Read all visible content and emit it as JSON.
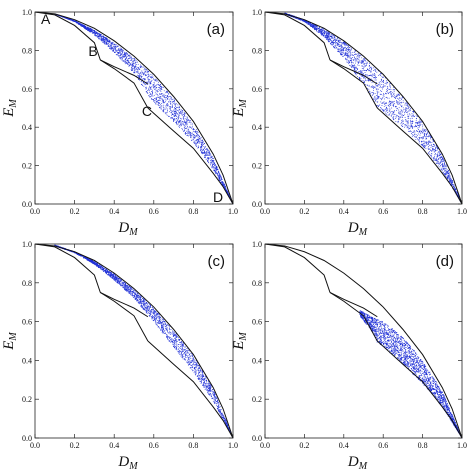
{
  "colors": {
    "scatter": "#1f2fd6",
    "boundary": "#111111",
    "frame": "#222222",
    "background": "#ffffff"
  },
  "axes": {
    "xlabel_main": "D",
    "xlabel_sub": "M",
    "ylabel_main": "E",
    "ylabel_sub": "M",
    "xlim": [
      0,
      1
    ],
    "ylim": [
      0,
      1
    ],
    "x_ticks": [
      "0.0",
      "0.2",
      "0.4",
      "0.6",
      "0.8",
      "1.0"
    ],
    "y_ticks": [
      "0.0",
      "0.2",
      "0.4",
      "0.6",
      "0.8",
      "1.0"
    ],
    "grid": false
  },
  "chart_data": [
    {
      "type": "scatter",
      "panel": "(a)",
      "title": "",
      "xlabel": "D_M",
      "ylabel": "E_M",
      "xlim": [
        0,
        1
      ],
      "ylim": [
        0,
        1
      ],
      "annotations": [
        {
          "text": "A",
          "x": 0.0,
          "y": 1.0
        },
        {
          "text": "B",
          "x": 0.33,
          "y": 0.74
        },
        {
          "text": "C",
          "x": 0.57,
          "y": 0.5
        },
        {
          "text": "D",
          "x": 1.0,
          "y": 0.0
        }
      ],
      "boundaries": [
        {
          "x": [
            0.0,
            0.1,
            0.2,
            0.3,
            0.4,
            0.5,
            0.6,
            0.7,
            0.8,
            0.9,
            0.95,
            1.0
          ],
          "y": [
            1.0,
            0.99,
            0.96,
            0.915,
            0.85,
            0.77,
            0.675,
            0.56,
            0.43,
            0.26,
            0.15,
            0.0
          ]
        },
        {
          "x": [
            0.0,
            0.1,
            0.2,
            0.3,
            0.33
          ],
          "y": [
            1.0,
            0.985,
            0.93,
            0.84,
            0.75
          ]
        },
        {
          "x": [
            0.33,
            0.4,
            0.5,
            0.57
          ],
          "y": [
            0.75,
            0.705,
            0.63,
            0.5
          ]
        },
        {
          "x": [
            0.57,
            0.7,
            0.8,
            0.9,
            0.95,
            1.0
          ],
          "y": [
            0.5,
            0.38,
            0.29,
            0.16,
            0.09,
            0.0
          ]
        },
        {
          "x": [
            0.33,
            0.4,
            0.5,
            0.57
          ],
          "y": [
            0.75,
            0.715,
            0.67,
            0.625
          ]
        }
      ],
      "region": {
        "upper": {
          "x": [
            0.1,
            0.2,
            0.3,
            0.4,
            0.5,
            0.6,
            0.7,
            0.8,
            0.9,
            1.0
          ],
          "y": [
            0.99,
            0.955,
            0.905,
            0.84,
            0.76,
            0.665,
            0.55,
            0.415,
            0.24,
            0.0
          ]
        },
        "lower": {
          "x": [
            0.1,
            0.2,
            0.3,
            0.4,
            0.5,
            0.57,
            0.6,
            0.7,
            0.8,
            0.9,
            1.0
          ],
          "y": [
            0.99,
            0.95,
            0.88,
            0.79,
            0.68,
            0.57,
            0.53,
            0.43,
            0.32,
            0.18,
            0.0
          ]
        }
      }
    },
    {
      "type": "scatter",
      "panel": "(b)",
      "title": "",
      "xlabel": "D_M",
      "ylabel": "E_M",
      "xlim": [
        0,
        1
      ],
      "ylim": [
        0,
        1
      ],
      "annotations": [],
      "boundaries": [
        {
          "x": [
            0.0,
            0.1,
            0.2,
            0.3,
            0.4,
            0.5,
            0.6,
            0.7,
            0.8,
            0.9,
            0.95,
            1.0
          ],
          "y": [
            1.0,
            0.99,
            0.96,
            0.915,
            0.85,
            0.77,
            0.675,
            0.56,
            0.43,
            0.26,
            0.15,
            0.0
          ]
        },
        {
          "x": [
            0.0,
            0.1,
            0.2,
            0.3,
            0.33
          ],
          "y": [
            1.0,
            0.985,
            0.93,
            0.84,
            0.75
          ]
        },
        {
          "x": [
            0.33,
            0.4,
            0.5,
            0.57
          ],
          "y": [
            0.75,
            0.705,
            0.63,
            0.5
          ]
        },
        {
          "x": [
            0.57,
            0.7,
            0.8,
            0.9,
            0.95,
            1.0
          ],
          "y": [
            0.5,
            0.38,
            0.29,
            0.16,
            0.09,
            0.0
          ]
        },
        {
          "x": [
            0.33,
            0.4,
            0.5,
            0.57
          ],
          "y": [
            0.75,
            0.715,
            0.67,
            0.625
          ]
        }
      ],
      "region": {
        "upper": {
          "x": [
            0.1,
            0.2,
            0.3,
            0.4,
            0.5,
            0.6,
            0.7,
            0.8,
            0.9,
            1.0
          ],
          "y": [
            0.995,
            0.96,
            0.91,
            0.845,
            0.765,
            0.67,
            0.555,
            0.425,
            0.255,
            0.0
          ]
        },
        "lower": {
          "x": [
            0.1,
            0.2,
            0.3,
            0.4,
            0.5,
            0.57,
            0.6,
            0.7,
            0.8,
            0.9,
            1.0
          ],
          "y": [
            0.99,
            0.95,
            0.87,
            0.76,
            0.62,
            0.5,
            0.48,
            0.4,
            0.3,
            0.17,
            0.0
          ]
        }
      }
    },
    {
      "type": "scatter",
      "panel": "(c)",
      "title": "",
      "xlabel": "D_M",
      "ylabel": "E_M",
      "xlim": [
        0,
        1
      ],
      "ylim": [
        0,
        1
      ],
      "annotations": [],
      "boundaries": [
        {
          "x": [
            0.0,
            0.1,
            0.2,
            0.3,
            0.4,
            0.5,
            0.6,
            0.7,
            0.8,
            0.9,
            0.95,
            1.0
          ],
          "y": [
            1.0,
            0.99,
            0.96,
            0.915,
            0.85,
            0.77,
            0.675,
            0.56,
            0.43,
            0.26,
            0.15,
            0.0
          ]
        },
        {
          "x": [
            0.0,
            0.1,
            0.2,
            0.3,
            0.33
          ],
          "y": [
            1.0,
            0.985,
            0.93,
            0.84,
            0.75
          ]
        },
        {
          "x": [
            0.33,
            0.4,
            0.5,
            0.57
          ],
          "y": [
            0.75,
            0.705,
            0.63,
            0.5
          ]
        },
        {
          "x": [
            0.57,
            0.7,
            0.8,
            0.9,
            0.95,
            1.0
          ],
          "y": [
            0.5,
            0.38,
            0.29,
            0.16,
            0.09,
            0.0
          ]
        },
        {
          "x": [
            0.33,
            0.4,
            0.5,
            0.57
          ],
          "y": [
            0.75,
            0.715,
            0.67,
            0.625
          ]
        }
      ],
      "region": {
        "upper": {
          "x": [
            0.1,
            0.2,
            0.3,
            0.4,
            0.5,
            0.6,
            0.7,
            0.8,
            0.9,
            1.0
          ],
          "y": [
            0.995,
            0.96,
            0.91,
            0.845,
            0.765,
            0.67,
            0.555,
            0.425,
            0.255,
            0.0
          ]
        },
        "lower": {
          "x": [
            0.1,
            0.2,
            0.3,
            0.4,
            0.5,
            0.6,
            0.7,
            0.8,
            0.9,
            1.0
          ],
          "y": [
            0.99,
            0.955,
            0.895,
            0.815,
            0.72,
            0.6,
            0.47,
            0.34,
            0.19,
            0.0
          ]
        }
      }
    },
    {
      "type": "scatter",
      "panel": "(d)",
      "title": "",
      "xlabel": "D_M",
      "ylabel": "E_M",
      "xlim": [
        0,
        1
      ],
      "ylim": [
        0,
        1
      ],
      "annotations": [],
      "boundaries": [
        {
          "x": [
            0.0,
            0.1,
            0.2,
            0.3,
            0.4,
            0.5,
            0.6,
            0.7,
            0.8,
            0.9,
            0.95,
            1.0
          ],
          "y": [
            1.0,
            0.99,
            0.96,
            0.915,
            0.85,
            0.77,
            0.675,
            0.56,
            0.43,
            0.26,
            0.15,
            0.0
          ]
        },
        {
          "x": [
            0.0,
            0.1,
            0.2,
            0.3,
            0.33
          ],
          "y": [
            1.0,
            0.985,
            0.93,
            0.84,
            0.75
          ]
        },
        {
          "x": [
            0.33,
            0.4,
            0.5,
            0.57
          ],
          "y": [
            0.75,
            0.705,
            0.63,
            0.5
          ]
        },
        {
          "x": [
            0.57,
            0.7,
            0.8,
            0.9,
            0.95,
            1.0
          ],
          "y": [
            0.5,
            0.38,
            0.29,
            0.16,
            0.09,
            0.0
          ]
        },
        {
          "x": [
            0.33,
            0.4,
            0.5,
            0.57
          ],
          "y": [
            0.75,
            0.715,
            0.67,
            0.625
          ]
        }
      ],
      "region": {
        "upper": {
          "x": [
            0.48,
            0.55,
            0.6,
            0.7,
            0.8,
            0.9,
            1.0
          ],
          "y": [
            0.66,
            0.62,
            0.6,
            0.52,
            0.4,
            0.24,
            0.0
          ]
        },
        "lower": {
          "x": [
            0.48,
            0.55,
            0.57,
            0.6,
            0.7,
            0.8,
            0.9,
            1.0
          ],
          "y": [
            0.63,
            0.54,
            0.49,
            0.47,
            0.38,
            0.28,
            0.16,
            0.0
          ]
        }
      }
    }
  ]
}
